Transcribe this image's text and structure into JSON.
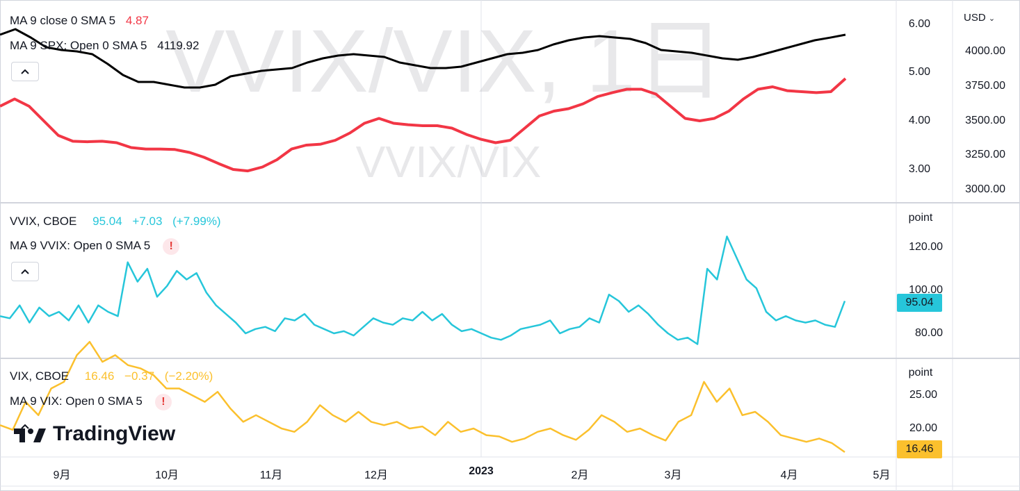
{
  "watermark": {
    "title": "VVIX/VIX, 1日",
    "subtitle": "VVIX/VIX"
  },
  "top_pane": {
    "legend": [
      {
        "label": "MA 9 close 0 SMA 5",
        "value": "4.87",
        "color": "#f23645"
      },
      {
        "label": "MA 9 SPX: Open 0 SMA 5",
        "value": "4119.92",
        "color": "#131722"
      }
    ],
    "left_axis_ticks": [
      "6.00",
      "5.00",
      "4.00",
      "3.00"
    ],
    "right_axis_ticks": [
      "4000.00",
      "3750.00",
      "3500.00",
      "3250.00",
      "3000.00"
    ],
    "currency": "USD"
  },
  "vvix_pane": {
    "symbol": "VVIX, CBOE",
    "price": "95.04",
    "change": "+7.03",
    "change_pct": "(+7.99%)",
    "ma_label": "MA 9 VVIX: Open 0 SMA 5",
    "unit": "point",
    "ticks": [
      "120.00",
      "100.00",
      "80.00"
    ],
    "last_tag": "95.04",
    "color": "#26c6da"
  },
  "vix_pane": {
    "symbol": "VIX, CBOE",
    "price": "16.46",
    "change": "−0.37",
    "change_pct": "(−2.20%)",
    "ma_label": "MA 9 VIX: Open 0 SMA 5",
    "unit": "point",
    "ticks": [
      "25.00",
      "20.00"
    ],
    "last_tag": "16.46",
    "color": "#fbc02d"
  },
  "x_axis": {
    "labels": [
      "9月",
      "10月",
      "11月",
      "12月",
      "2023",
      "2月",
      "3月",
      "4月",
      "5月"
    ]
  },
  "logo_text": "TradingView",
  "chart_data": [
    {
      "type": "line",
      "name": "top",
      "series": [
        {
          "name": "MA 9 close 0 SMA 5",
          "axis": "left",
          "color": "#f23645",
          "values": [
            4.3,
            4.45,
            4.3,
            4.0,
            3.7,
            3.58,
            3.57,
            3.58,
            3.55,
            3.45,
            3.42,
            3.42,
            3.41,
            3.35,
            3.25,
            3.12,
            3.0,
            2.97,
            3.05,
            3.2,
            3.42,
            3.5,
            3.52,
            3.6,
            3.75,
            3.95,
            4.05,
            3.95,
            3.92,
            3.9,
            3.9,
            3.85,
            3.72,
            3.62,
            3.55,
            3.6,
            3.85,
            4.1,
            4.2,
            4.25,
            4.35,
            4.5,
            4.58,
            4.65,
            4.65,
            4.55,
            4.3,
            4.05,
            4.0,
            4.05,
            4.2,
            4.45,
            4.65,
            4.7,
            4.62,
            4.6,
            4.58,
            4.6,
            4.87
          ]
        },
        {
          "name": "MA 9 SPX: Open 0 SMA 5",
          "axis": "right",
          "color": "#000000",
          "values": [
            4120,
            4160,
            4100,
            4030,
            4010,
            4000,
            3980,
            3910,
            3830,
            3780,
            3780,
            3760,
            3740,
            3740,
            3760,
            3820,
            3840,
            3860,
            3870,
            3880,
            3920,
            3950,
            3970,
            3980,
            3970,
            3960,
            3920,
            3900,
            3880,
            3880,
            3890,
            3920,
            3950,
            3980,
            3990,
            4010,
            4050,
            4080,
            4100,
            4110,
            4100,
            4090,
            4060,
            4010,
            4000,
            3990,
            3970,
            3950,
            3940,
            3960,
            3990,
            4020,
            4050,
            4080,
            4099,
            4119.92
          ]
        }
      ]
    },
    {
      "type": "line",
      "name": "VVIX",
      "series": [
        {
          "name": "VVIX, CBOE",
          "values": [
            88,
            87,
            93,
            85,
            92,
            88,
            90,
            86,
            93,
            85,
            93,
            90,
            88,
            113,
            104,
            110,
            97,
            102,
            109,
            105,
            108,
            99,
            93,
            89,
            85,
            80,
            82,
            83,
            81,
            87,
            86,
            89,
            84,
            82,
            80,
            81,
            79,
            83,
            87,
            85,
            84,
            87,
            86,
            90,
            86,
            89,
            84,
            81,
            82,
            80,
            78,
            77,
            79,
            82,
            83,
            84,
            86,
            80,
            82,
            83,
            87,
            85,
            98,
            95,
            90,
            93,
            89,
            84,
            80,
            77,
            78,
            75,
            110,
            105,
            125,
            115,
            105,
            101,
            90,
            86,
            88,
            86,
            85,
            86,
            84,
            83,
            95.04
          ]
        }
      ]
    },
    {
      "type": "line",
      "name": "VIX",
      "series": [
        {
          "name": "VIX, CBOE",
          "values": [
            20.5,
            19.8,
            24,
            22,
            26,
            27,
            31,
            33,
            30,
            31,
            29.5,
            29,
            28,
            26,
            26,
            25,
            24,
            25.5,
            23,
            21,
            22,
            21,
            20,
            19.5,
            21,
            23.5,
            22,
            21,
            22.5,
            21,
            20.5,
            21,
            20,
            20.3,
            19,
            21,
            19.5,
            20,
            19,
            18.8,
            18,
            18.5,
            19.5,
            20,
            19,
            18.3,
            19.8,
            22,
            21,
            19.5,
            20,
            19,
            18.2,
            21,
            22,
            27,
            24,
            26,
            22,
            22.5,
            21,
            19,
            18.5,
            18,
            18.5,
            17.8,
            16.46
          ]
        }
      ]
    }
  ]
}
